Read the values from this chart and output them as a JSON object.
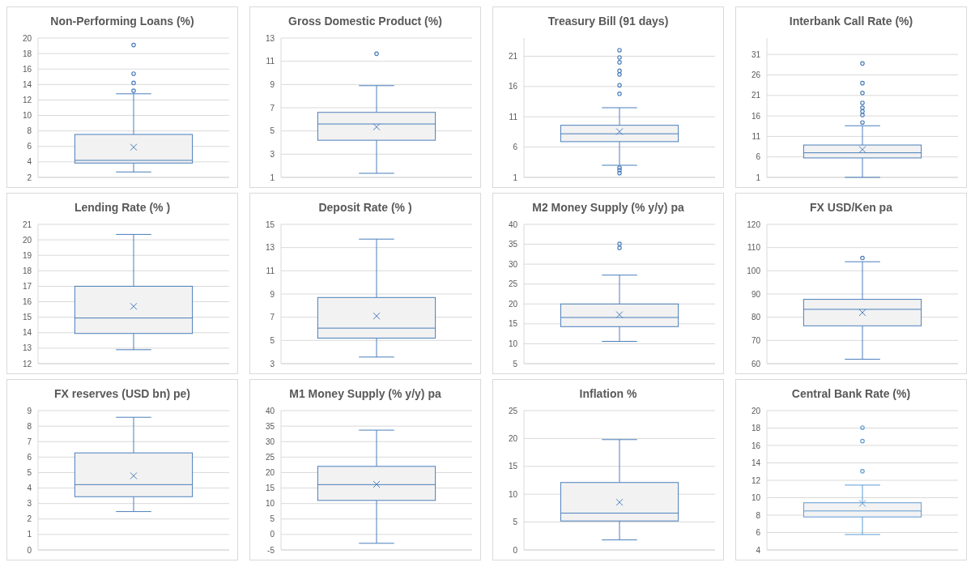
{
  "chart_data": [
    {
      "type": "box",
      "title": "Non-Performing Loans (%)",
      "categories": [
        null
      ],
      "color": "#4a7ebb",
      "grid": "y",
      "tick_labels": "y",
      "ylim": [
        2,
        20
      ],
      "yticks": [
        2,
        4,
        6,
        8,
        10,
        12,
        14,
        16,
        18,
        20
      ],
      "boxes": [
        {
          "low": 2.7,
          "q1": 3.85,
          "median": 4.2,
          "q3": 7.55,
          "high": 12.8,
          "mean": 5.9,
          "outliers": [
            13.2,
            14.2,
            15.4,
            19.1
          ]
        }
      ]
    },
    {
      "type": "box",
      "title": "Gross Domestic Product (%)",
      "categories": [
        null
      ],
      "color": "#4a7ebb",
      "grid": "y",
      "tick_labels": "y",
      "ylim": [
        1,
        13
      ],
      "yticks": [
        1,
        3,
        5,
        7,
        9,
        11,
        13
      ],
      "boxes": [
        {
          "low": 1.35,
          "q1": 4.2,
          "median": 5.6,
          "q3": 6.6,
          "high": 8.9,
          "mean": 5.35,
          "outliers": [
            11.65
          ]
        }
      ]
    },
    {
      "type": "box",
      "title": "Treasury Bill (91 days)",
      "categories": [
        null
      ],
      "color": "#4a7ebb",
      "grid": "y",
      "tick_labels": "y",
      "ylim": [
        1,
        24
      ],
      "yticks": [
        1,
        6,
        11,
        16,
        21
      ],
      "boxes": [
        {
          "low": 3.0,
          "q1": 6.9,
          "median": 8.2,
          "q3": 9.6,
          "high": 12.5,
          "mean": 8.55,
          "outliers": [
            1.7,
            2.2,
            2.6,
            14.8,
            16.2,
            18.0,
            18.6,
            20.0,
            20.8,
            22.0
          ]
        }
      ]
    },
    {
      "type": "box",
      "title": "Interbank Call Rate (%)",
      "categories": [
        null
      ],
      "color": "#4a7ebb",
      "grid": "y",
      "tick_labels": "y",
      "ylim": [
        1,
        35
      ],
      "yticks": [
        1,
        6,
        11,
        16,
        21,
        26,
        31
      ],
      "boxes": [
        {
          "low": 1,
          "q1": 5.75,
          "median": 7.0,
          "q3": 8.9,
          "high": 13.6,
          "mean": 7.8,
          "outliers": [
            14.4,
            16.2,
            17.1,
            18.0,
            19.2,
            21.6,
            24.0,
            28.8
          ]
        }
      ]
    },
    {
      "type": "box",
      "title": "Lending Rate (% )",
      "categories": [
        null
      ],
      "color": "#4a7ebb",
      "grid": "y",
      "tick_labels": "y",
      "ylim": [
        12,
        21
      ],
      "yticks": [
        12,
        13,
        14,
        15,
        16,
        17,
        18,
        19,
        20,
        21
      ],
      "boxes": [
        {
          "low": 12.9,
          "q1": 13.95,
          "median": 14.95,
          "q3": 17.0,
          "high": 20.35,
          "mean": 15.7
        }
      ]
    },
    {
      "type": "box",
      "title": "Deposit Rate (% )",
      "categories": [
        null
      ],
      "color": "#4a7ebb",
      "grid": "y",
      "tick_labels": "y",
      "ylim": [
        3,
        15
      ],
      "yticks": [
        3,
        5,
        7,
        9,
        11,
        13,
        15
      ],
      "boxes": [
        {
          "low": 3.57,
          "q1": 5.2,
          "median": 6.06,
          "q3": 8.7,
          "high": 13.73,
          "mean": 7.1
        }
      ]
    },
    {
      "type": "box",
      "title": "M2 Money Supply (% y/y) pa",
      "categories": [
        null
      ],
      "color": "#4a7ebb",
      "grid": "y",
      "tick_labels": "y",
      "ylim": [
        5,
        40
      ],
      "yticks": [
        5,
        10,
        15,
        20,
        25,
        30,
        35,
        40
      ],
      "boxes": [
        {
          "low": 10.6,
          "q1": 14.3,
          "median": 16.6,
          "q3": 20.0,
          "high": 27.25,
          "mean": 17.3,
          "outliers": [
            34.1,
            35.1
          ]
        }
      ]
    },
    {
      "type": "box",
      "title": "FX USD/Ken pa",
      "categories": [
        null
      ],
      "color": "#4a7ebb",
      "grid": "y",
      "tick_labels": "y",
      "ylim": [
        60,
        120
      ],
      "yticks": [
        60,
        70,
        80,
        90,
        100,
        110,
        120
      ],
      "boxes": [
        {
          "low": 61.9,
          "q1": 76.3,
          "median": 83.4,
          "q3": 87.7,
          "high": 103.9,
          "mean": 82.0,
          "outliers": [
            105.5
          ]
        }
      ]
    },
    {
      "type": "box",
      "title": "FX reserves (USD bn) pe)",
      "categories": [
        null
      ],
      "color": "#4a7ebb",
      "grid": "y",
      "tick_labels": "y",
      "ylim": [
        0,
        9
      ],
      "yticks": [
        0,
        1,
        2,
        3,
        4,
        5,
        6,
        7,
        8,
        9
      ],
      "boxes": [
        {
          "low": 2.48,
          "q1": 3.44,
          "median": 4.22,
          "q3": 6.27,
          "high": 8.57,
          "mean": 4.79
        }
      ]
    },
    {
      "type": "box",
      "title": "M1 Money Supply (% y/y) pa",
      "categories": [
        null
      ],
      "color": "#4a7ebb",
      "grid": "y",
      "tick_labels": "y",
      "ylim": [
        -5,
        40
      ],
      "yticks": [
        -5,
        0,
        5,
        10,
        15,
        20,
        25,
        30,
        35,
        40
      ],
      "boxes": [
        {
          "low": -2.85,
          "q1": 11.0,
          "median": 16.1,
          "q3": 22.0,
          "high": 33.7,
          "mean": 16.2
        }
      ]
    },
    {
      "type": "box",
      "title": "Inflation %",
      "categories": [
        null
      ],
      "color": "#4a7ebb",
      "grid": "y",
      "tick_labels": "y",
      "ylim": [
        0,
        25
      ],
      "yticks": [
        0,
        5,
        10,
        15,
        20,
        25
      ],
      "boxes": [
        {
          "low": 1.8,
          "q1": 5.2,
          "median": 6.6,
          "q3": 12.1,
          "high": 19.8,
          "mean": 8.55
        }
      ]
    },
    {
      "type": "box",
      "title": "Central Bank Rate (%)",
      "categories": [
        null
      ],
      "color": "#5b9bd5",
      "grid": "y",
      "tick_labels": "y",
      "ylim": [
        4,
        20
      ],
      "yticks": [
        4,
        6,
        8,
        10,
        12,
        14,
        16,
        18,
        20
      ],
      "boxes": [
        {
          "low": 5.77,
          "q1": 7.79,
          "median": 8.48,
          "q3": 9.42,
          "high": 11.45,
          "mean": 9.35,
          "outliers": [
            13.04,
            16.5,
            18.05
          ]
        }
      ]
    }
  ]
}
